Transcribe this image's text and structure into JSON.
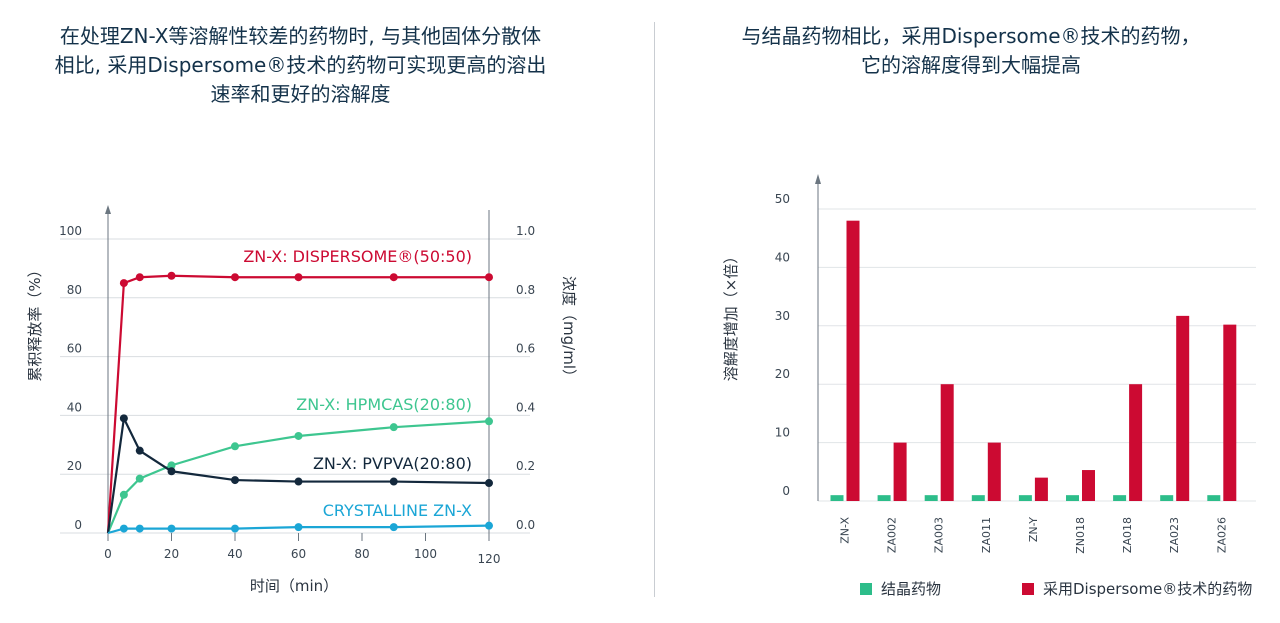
{
  "left": {
    "title_lines": [
      "在处理ZN-X等溶解性较差的药物时, 与其他固体分散体",
      "相比, 采用Dispersome®技术的药物可实现更高的溶出",
      "速率和更好的溶解度"
    ]
  },
  "right": {
    "title_lines": [
      "与结晶药物相比，采用Dispersome®技术的药物，",
      "它的溶解度得到大幅提高"
    ],
    "legend": [
      {
        "label": "结晶药物",
        "color": "#2dbd8a"
      },
      {
        "label": "采用Dispersome®技术的药物",
        "color": "#cc0a32"
      }
    ]
  },
  "chart_data": [
    {
      "type": "line",
      "xlabel": "时间（min）",
      "ylabel": "累积释放率（%）",
      "y2label": "浓度（mg/ml）",
      "x_ticks": [
        0,
        20,
        40,
        60,
        80,
        100,
        120
      ],
      "y_ticks": [
        0,
        20,
        40,
        60,
        80,
        100
      ],
      "y2_ticks": [
        "0.0",
        "0.2",
        "0.4",
        "0.6",
        "0.8",
        "1.0"
      ],
      "xlim": [
        0,
        120
      ],
      "ylim": [
        0,
        100
      ],
      "series": [
        {
          "name": "ZN-X: DISPERSOME®(50:50)",
          "color": "#cc0a32",
          "x": [
            0,
            5,
            10,
            20,
            40,
            60,
            90,
            120
          ],
          "y": [
            0,
            85,
            87,
            87.5,
            87,
            87,
            87,
            87
          ]
        },
        {
          "name": "ZN-X: HPMCAS(20:80)",
          "color": "#3ec690",
          "x": [
            0,
            5,
            10,
            20,
            40,
            60,
            90,
            120
          ],
          "y": [
            0,
            13,
            18.5,
            23,
            29.5,
            33,
            36,
            38
          ]
        },
        {
          "name": "ZN-X: PVPVA(20:80)",
          "color": "#13283c",
          "x": [
            0,
            5,
            10,
            20,
            40,
            60,
            90,
            120
          ],
          "y": [
            0,
            39,
            28,
            21,
            18,
            17.5,
            17.5,
            17
          ]
        },
        {
          "name": "CRYSTALLINE ZN-X",
          "color": "#1ba6d6",
          "x": [
            0,
            5,
            10,
            20,
            40,
            60,
            90,
            120
          ],
          "y": [
            0,
            1.5,
            1.5,
            1.5,
            1.5,
            2,
            2,
            2.5
          ]
        }
      ]
    },
    {
      "type": "bar",
      "ylabel": "溶解度增加（×倍）",
      "y_ticks": [
        0,
        10,
        20,
        30,
        40,
        50
      ],
      "ylim": [
        0,
        50
      ],
      "categories": [
        "ZN-X",
        "ZA002",
        "ZA003",
        "ZA011",
        "ZN-Y",
        "ZN018",
        "ZA018",
        "ZA023",
        "ZA026"
      ],
      "series": [
        {
          "name": "结晶药物",
          "color": "#2dbd8a",
          "values": [
            1,
            1,
            1,
            1,
            1,
            1,
            1,
            1,
            1
          ]
        },
        {
          "name": "采用Dispersome®技术的药物",
          "color": "#cc0a32",
          "values": [
            48,
            10,
            20,
            10,
            4,
            5.3,
            20,
            31.7,
            30.2
          ]
        }
      ]
    }
  ]
}
